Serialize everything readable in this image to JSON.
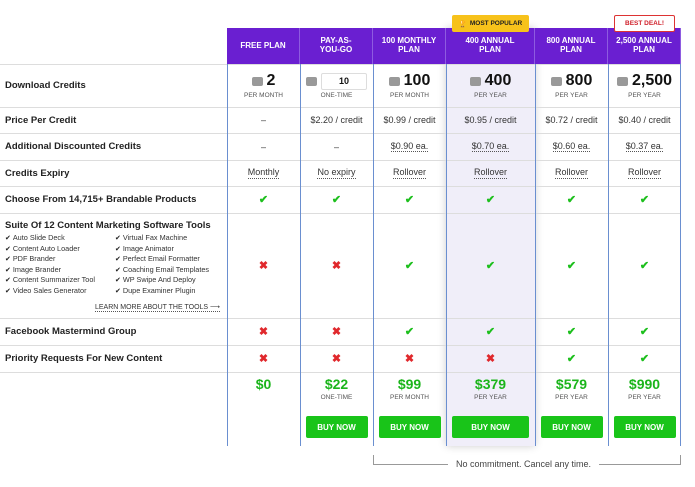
{
  "badges": {
    "popular": "MOST POPULAR",
    "best": "BEST DEAL!"
  },
  "plans": [
    {
      "name": "FREE PLAN",
      "credits": "2",
      "credits_unit": "PER MONTH",
      "price": "$0",
      "price_unit": "",
      "buy": ""
    },
    {
      "name": "PAY-AS-YOU-GO",
      "credits": "10",
      "credits_unit": "ONE-TIME",
      "price": "$22",
      "price_unit": "ONE-TIME",
      "buy": "BUY NOW"
    },
    {
      "name": "100 MONTHLY PLAN",
      "credits": "100",
      "credits_unit": "PER MONTH",
      "price": "$99",
      "price_unit": "PER MONTH",
      "buy": "BUY NOW"
    },
    {
      "name": "400 ANNUAL PLAN",
      "credits": "400",
      "credits_unit": "PER YEAR",
      "price": "$379",
      "price_unit": "PER YEAR",
      "buy": "BUY NOW"
    },
    {
      "name": "800 ANNUAL PLAN",
      "credits": "800",
      "credits_unit": "PER YEAR",
      "price": "$579",
      "price_unit": "PER YEAR",
      "buy": "BUY NOW"
    },
    {
      "name": "2,500 ANNUAL PLAN",
      "credits": "2,500",
      "credits_unit": "PER YEAR",
      "price": "$990",
      "price_unit": "PER YEAR",
      "buy": "BUY NOW"
    }
  ],
  "rows": [
    {
      "label": "Download Credits"
    },
    {
      "label": "Price Per Credit",
      "cells": [
        {
          "t": "text",
          "v": "–"
        },
        {
          "t": "text",
          "v": "$2.20 / credit"
        },
        {
          "t": "text",
          "v": "$0.99 / credit"
        },
        {
          "t": "text",
          "v": "$0.95 / credit"
        },
        {
          "t": "text",
          "v": "$0.72 / credit"
        },
        {
          "t": "text",
          "v": "$0.40 / credit"
        }
      ]
    },
    {
      "label": "Additional Discounted Credits",
      "cells": [
        {
          "t": "text",
          "v": "–"
        },
        {
          "t": "text",
          "v": "–"
        },
        {
          "t": "u",
          "v": "$0.90 ea."
        },
        {
          "t": "u",
          "v": "$0.70 ea."
        },
        {
          "t": "u",
          "v": "$0.60 ea."
        },
        {
          "t": "u",
          "v": "$0.37 ea."
        }
      ]
    },
    {
      "label": "Credits Expiry",
      "cells": [
        {
          "t": "u",
          "v": "Monthly"
        },
        {
          "t": "u",
          "v": "No expiry"
        },
        {
          "t": "u",
          "v": "Rollover"
        },
        {
          "t": "u",
          "v": "Rollover"
        },
        {
          "t": "u",
          "v": "Rollover"
        },
        {
          "t": "u",
          "v": "Rollover"
        }
      ]
    },
    {
      "label": "Choose From 14,715+ Brandable Products",
      "cells": [
        {
          "t": "check"
        },
        {
          "t": "check"
        },
        {
          "t": "check"
        },
        {
          "t": "check"
        },
        {
          "t": "check"
        },
        {
          "t": "check"
        }
      ]
    },
    {
      "label": "Suite Of 12 Content Marketing Software Tools",
      "cells": [
        {
          "t": "cross"
        },
        {
          "t": "cross"
        },
        {
          "t": "check"
        },
        {
          "t": "check"
        },
        {
          "t": "check"
        },
        {
          "t": "check"
        }
      ]
    },
    {
      "label": "Facebook Mastermind Group",
      "cells": [
        {
          "t": "cross"
        },
        {
          "t": "cross"
        },
        {
          "t": "check"
        },
        {
          "t": "check"
        },
        {
          "t": "check"
        },
        {
          "t": "check"
        }
      ]
    },
    {
      "label": "Priority Requests For New Content",
      "cells": [
        {
          "t": "cross"
        },
        {
          "t": "cross"
        },
        {
          "t": "cross"
        },
        {
          "t": "cross"
        },
        {
          "t": "check"
        },
        {
          "t": "check"
        }
      ]
    }
  ],
  "tools": [
    "Auto Slide Deck",
    "Virtual Fax Machine",
    "Content Auto Loader",
    "Image Animator",
    "PDF Brander",
    "Perfect Email Formatter",
    "Image Brander",
    "Coaching Email Templates",
    "Content Summarizer Tool",
    "WP Swipe And Deploy",
    "Video Sales Generator",
    "Dupe Examiner Plugin"
  ],
  "learn_more": "LEARN MORE ABOUT THE TOOLS ⟶",
  "footer_note": "No commitment. Cancel any time.",
  "colors": {
    "header": "#6a1fd1",
    "check": "#1dbf1d",
    "cross": "#e0282c",
    "buy": "#19c419",
    "popular_badge": "#f7c21b"
  }
}
